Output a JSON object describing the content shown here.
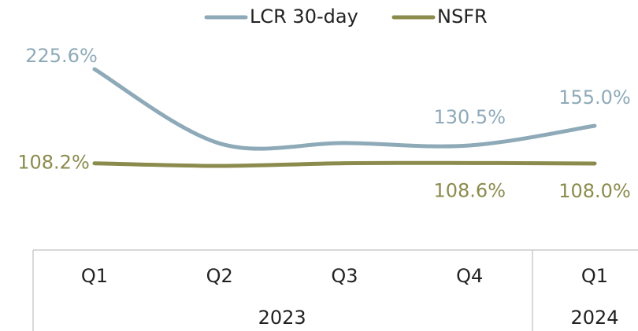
{
  "chart_data": {
    "type": "line",
    "categories": [
      "Q1",
      "Q2",
      "Q3",
      "Q4",
      "Q1"
    ],
    "groups": [
      {
        "label": "2023",
        "span": 4
      },
      {
        "label": "2024",
        "span": 1
      }
    ],
    "series": [
      {
        "name": "LCR 30-day",
        "color": "#8eaab8",
        "values": [
          225.6,
          133,
          133.5,
          130.5,
          155.0
        ],
        "value_labels": [
          "225.6%",
          null,
          null,
          "130.5%",
          "155.0%"
        ]
      },
      {
        "name": "NSFR",
        "color": "#8b8b4d",
        "values": [
          108.2,
          105,
          108.3,
          108.6,
          108.0
        ],
        "value_labels": [
          "108.2%",
          null,
          null,
          "108.6%",
          "108.0%"
        ]
      }
    ],
    "legend": "top"
  }
}
